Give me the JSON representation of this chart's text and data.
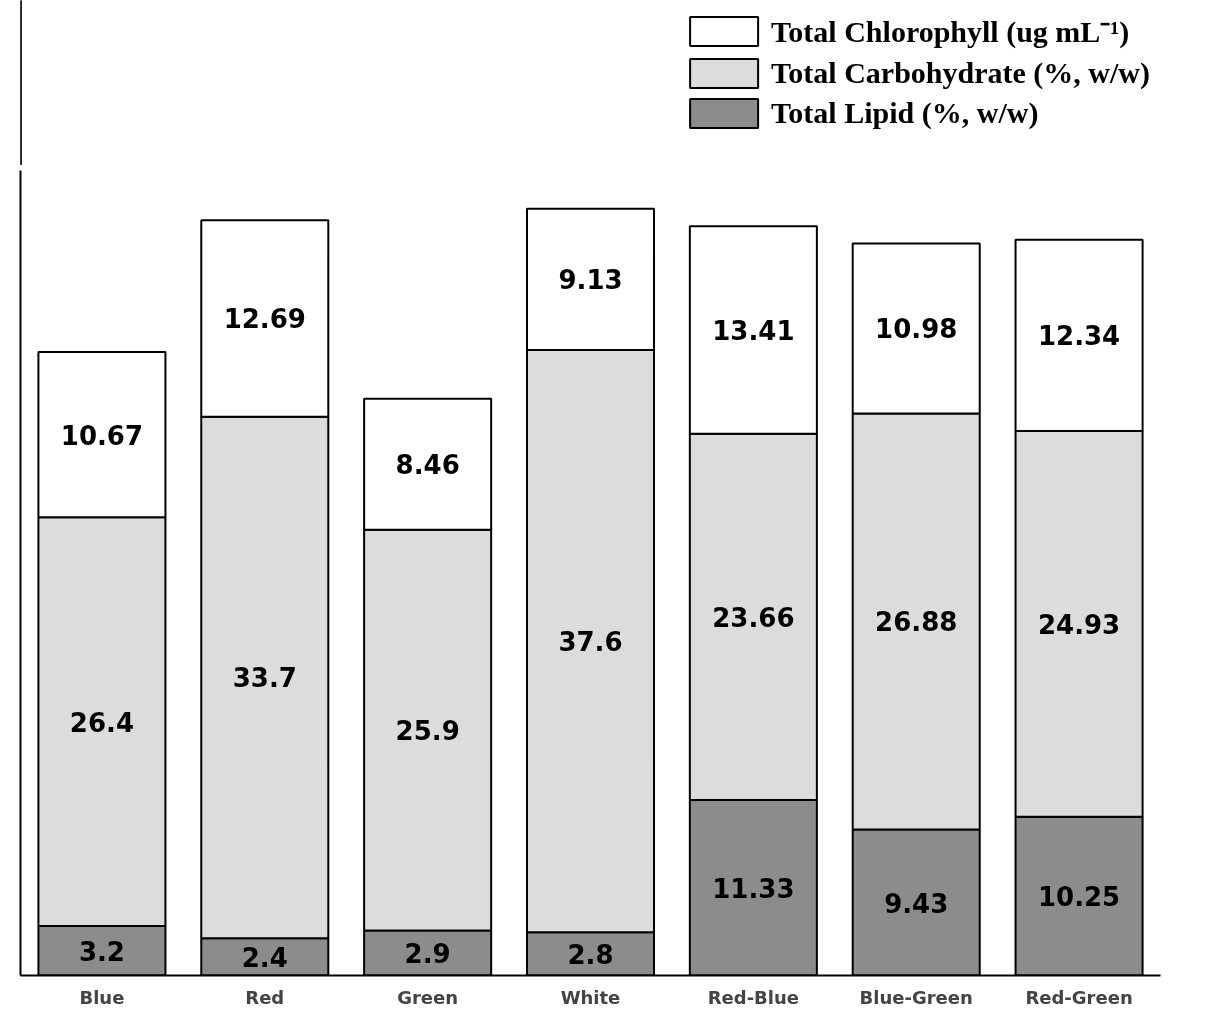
{
  "chart_data": {
    "type": "bar",
    "stacked": true,
    "data_labels": true,
    "legend": "top right",
    "tick_labels": "x",
    "grid": false,
    "categories": [
      "Blue",
      "Red",
      "Green",
      "White",
      "Red-Blue",
      "Blue-Green",
      "Red-Green"
    ],
    "ylim": [
      0,
      52
    ],
    "series": [
      {
        "name": "Total Lipid (%, w/w)",
        "color": "#8c8c8c",
        "values": [
          3.2,
          2.4,
          2.9,
          2.8,
          11.33,
          9.43,
          10.25
        ]
      },
      {
        "name": "Total Carbohydrate (%, w/w)",
        "color": "#dcdcdc",
        "values": [
          26.4,
          33.7,
          25.9,
          37.6,
          23.66,
          26.88,
          24.93
        ]
      },
      {
        "name": "Total Chlorophyll (ug mL⁻¹)",
        "color": "#ffffff",
        "values": [
          10.67,
          12.69,
          8.46,
          9.13,
          13.41,
          10.98,
          12.34
        ]
      }
    ]
  }
}
